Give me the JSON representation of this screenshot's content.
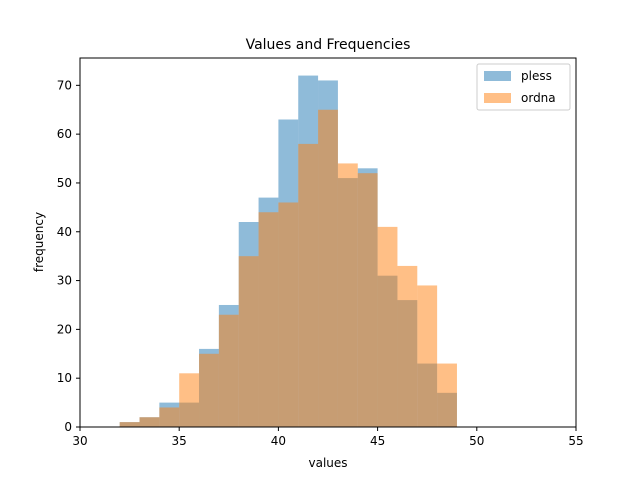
{
  "chart_data": {
    "type": "histogram",
    "title": "Values and Frequencies",
    "xlabel": "values",
    "ylabel": "frequency",
    "xlim": [
      30,
      55
    ],
    "ylim": [
      0,
      75.6
    ],
    "xticks": [
      30,
      35,
      40,
      45,
      50,
      55
    ],
    "yticks": [
      0,
      10,
      20,
      30,
      40,
      50,
      60,
      70
    ],
    "bin_width": 1,
    "bin_starts": [
      32,
      33,
      34,
      35,
      36,
      37,
      38,
      39,
      40,
      41,
      42,
      43,
      44,
      45,
      46,
      47,
      48
    ],
    "series": [
      {
        "name": "pless",
        "color": "#1f77b4",
        "alpha": 0.5,
        "values": [
          1,
          2,
          5,
          5,
          16,
          25,
          42,
          47,
          63,
          72,
          71,
          51,
          53,
          31,
          26,
          13,
          7
        ]
      },
      {
        "name": "ordna",
        "color": "#ff7f0e",
        "alpha": 0.5,
        "values": [
          1,
          2,
          4,
          11,
          15,
          23,
          35,
          44,
          46,
          58,
          65,
          54,
          52,
          41,
          33,
          29,
          13
        ]
      }
    ],
    "legend_position": "top-right",
    "grid": false
  }
}
